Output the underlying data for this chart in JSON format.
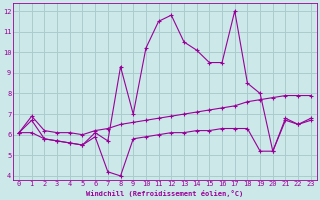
{
  "xlabel": "Windchill (Refroidissement éolien,°C)",
  "bg_color": "#cce8e8",
  "grid_color": "#aacccc",
  "line_color": "#990099",
  "xlim": [
    -0.5,
    23.5
  ],
  "ylim": [
    3.8,
    12.4
  ],
  "xticks": [
    0,
    1,
    2,
    3,
    4,
    5,
    6,
    7,
    8,
    9,
    10,
    11,
    12,
    13,
    14,
    15,
    16,
    17,
    18,
    19,
    20,
    21,
    22,
    23
  ],
  "yticks": [
    4,
    5,
    6,
    7,
    8,
    9,
    10,
    11,
    12
  ],
  "series1_x": [
    0,
    1,
    2,
    3,
    4,
    5,
    6,
    7,
    8,
    9,
    10,
    11,
    12,
    13,
    14,
    15,
    16,
    17,
    18,
    19,
    20,
    21,
    22,
    23
  ],
  "series1_y": [
    6.1,
    6.7,
    5.8,
    5.7,
    5.6,
    5.5,
    6.1,
    5.7,
    9.3,
    7.0,
    10.2,
    11.5,
    11.8,
    10.5,
    10.1,
    9.5,
    9.5,
    12.0,
    8.5,
    8.0,
    5.2,
    6.8,
    6.5,
    6.8
  ],
  "series2_x": [
    0,
    1,
    2,
    3,
    4,
    5,
    6,
    7,
    8,
    9,
    10,
    11,
    12,
    13,
    14,
    15,
    16,
    17,
    18,
    19,
    20,
    21,
    22,
    23
  ],
  "series2_y": [
    6.1,
    6.9,
    6.2,
    6.1,
    6.1,
    6.0,
    6.2,
    6.3,
    6.5,
    6.6,
    6.7,
    6.8,
    6.9,
    7.0,
    7.1,
    7.2,
    7.3,
    7.4,
    7.6,
    7.7,
    7.8,
    7.9,
    7.9,
    7.9
  ],
  "series3_x": [
    0,
    1,
    2,
    3,
    4,
    5,
    6,
    7,
    8,
    9,
    10,
    11,
    12,
    13,
    14,
    15,
    16,
    17,
    18,
    19,
    20,
    21,
    22,
    23
  ],
  "series3_y": [
    6.1,
    6.1,
    5.8,
    5.7,
    5.6,
    5.5,
    5.9,
    4.2,
    4.0,
    5.8,
    5.9,
    6.0,
    6.1,
    6.1,
    6.2,
    6.2,
    6.3,
    6.3,
    6.3,
    5.2,
    5.2,
    6.7,
    6.5,
    6.7
  ]
}
